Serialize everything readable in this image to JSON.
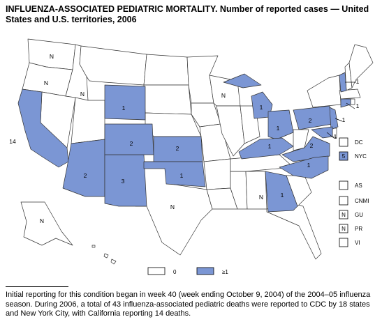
{
  "title": "INFLUENZA-ASSOCIATED PEDIATRIC MORTALITY. Number of reported cases — United States and U.S. territories, 2006",
  "colors": {
    "reported": "#7b96d4",
    "none": "#ffffff",
    "outline": "#000000",
    "border": "#333333"
  },
  "map_data": {
    "states": [
      {
        "id": "CA",
        "value": "14",
        "reported": true
      },
      {
        "id": "AZ",
        "value": "2",
        "reported": true
      },
      {
        "id": "NM",
        "value": "3",
        "reported": true
      },
      {
        "id": "CO",
        "value": "2",
        "reported": true
      },
      {
        "id": "WY",
        "value": "1",
        "reported": true
      },
      {
        "id": "KS",
        "value": "2",
        "reported": true
      },
      {
        "id": "OK",
        "value": "1",
        "reported": true
      },
      {
        "id": "MI",
        "value": "1",
        "reported": true
      },
      {
        "id": "OH",
        "value": "1",
        "reported": true
      },
      {
        "id": "KY",
        "value": "1",
        "reported": true
      },
      {
        "id": "VA",
        "value": "2",
        "reported": true
      },
      {
        "id": "NC",
        "value": "1",
        "reported": true
      },
      {
        "id": "GA",
        "value": "1",
        "reported": true
      },
      {
        "id": "PA",
        "value": "2",
        "reported": true
      },
      {
        "id": "NJ",
        "value": "1",
        "reported": true
      },
      {
        "id": "CT",
        "value": "1",
        "reported": true
      },
      {
        "id": "VT",
        "value": "1",
        "reported": true
      },
      {
        "id": "MD",
        "value": "1",
        "reported": true
      },
      {
        "id": "WA",
        "value": "N",
        "reported": false
      },
      {
        "id": "OR",
        "value": "N",
        "reported": false
      },
      {
        "id": "ID",
        "value": "N",
        "reported": false
      },
      {
        "id": "TX",
        "value": "N",
        "reported": false
      },
      {
        "id": "WI",
        "value": "N",
        "reported": false
      },
      {
        "id": "AL",
        "value": "N",
        "reported": false
      },
      {
        "id": "AK",
        "value": "N",
        "reported": false
      }
    ],
    "territories": [
      {
        "id": "DC",
        "box": "",
        "reported": false
      },
      {
        "id": "NYC",
        "box": "5",
        "reported": true
      },
      {
        "id": "AS",
        "box": "",
        "reported": false
      },
      {
        "id": "CNMI",
        "box": "",
        "reported": false
      },
      {
        "id": "GU",
        "box": "N",
        "reported": false
      },
      {
        "id": "PR",
        "box": "N",
        "reported": false
      },
      {
        "id": "VI",
        "box": "",
        "reported": false
      }
    ],
    "legend": [
      {
        "label": "0",
        "reported": false
      },
      {
        "label": "≥1",
        "reported": true
      }
    ]
  },
  "footnote": "Initial reporting for this condition began in week 40 (week ending October 9, 2004) of the 2004–05 influenza season. During 2006, a total of 43 influenza-associated pediatric deaths were reported to CDC by 18 states and New York City, with California reporting 14 deaths."
}
